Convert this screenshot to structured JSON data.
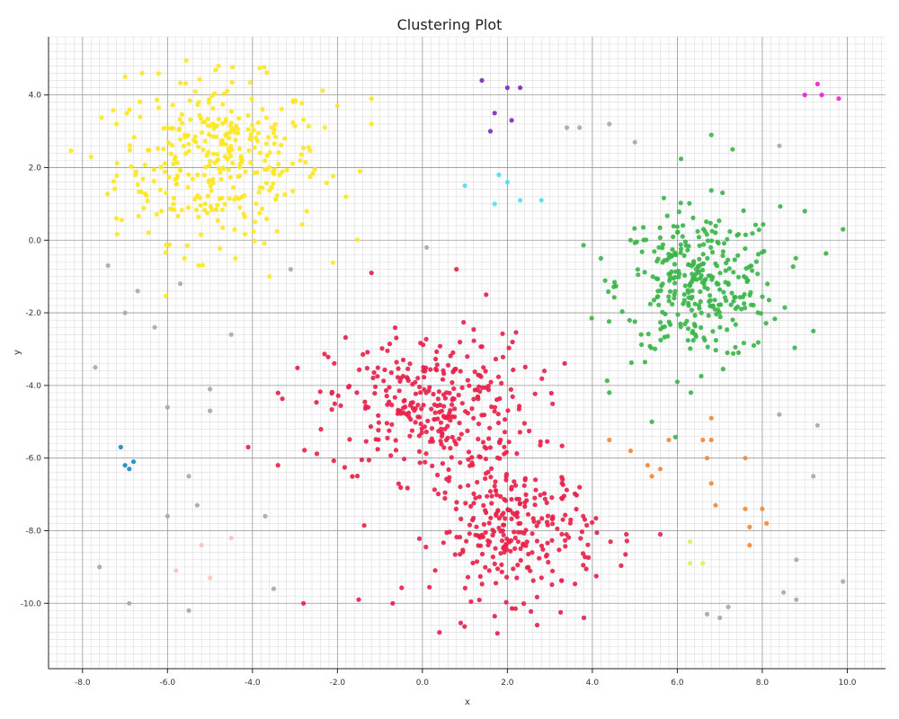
{
  "chart_data": {
    "type": "scatter",
    "title": "Clustering Plot",
    "xlabel": "x",
    "ylabel": "y",
    "xlim": [
      -8.8,
      10.9
    ],
    "ylim": [
      -11.8,
      5.6
    ],
    "x_ticks": [
      -8,
      -6,
      -4,
      -2,
      0,
      2,
      4,
      6,
      8,
      10
    ],
    "y_ticks": [
      -10,
      -8,
      -6,
      -4,
      -2,
      0,
      2,
      4
    ],
    "x_tick_labels": [
      "-8.0",
      "-6.0",
      "-4.0",
      "-2.0",
      "0.0",
      "2.0",
      "4.0",
      "6.0",
      "8.0",
      "10.0"
    ],
    "y_tick_labels": [
      "-10.0",
      "-8.0",
      "-6.0",
      "-4.0",
      "-2.0",
      "0.0",
      "2.0",
      "4.0"
    ],
    "grid": true,
    "minor_grid_step": 0.2,
    "legend": "none",
    "clusters": [
      {
        "color": "#fde725",
        "center": [
          -4.8,
          2.2
        ],
        "spread": [
          1.2,
          1.1
        ],
        "count": 340,
        "points": [
          [
            -7.8,
            2.3
          ],
          [
            -7.2,
            3.2
          ],
          [
            -7.0,
            4.5
          ],
          [
            -6.6,
            4.6
          ],
          [
            -7.2,
            0.6
          ],
          [
            -2.0,
            3.7
          ],
          [
            -1.2,
            3.9
          ],
          [
            -1.2,
            3.2
          ],
          [
            -1.8,
            1.2
          ],
          [
            -4.8,
            4.8
          ],
          [
            -5.6,
            -0.5
          ],
          [
            -3.6,
            -1.0
          ],
          [
            -4.4,
            -0.5
          ]
        ]
      },
      {
        "color": "#3db54b",
        "center": [
          6.5,
          -1.2
        ],
        "spread": [
          0.95,
          1.05
        ],
        "count": 330,
        "points": [
          [
            6.8,
            2.9
          ],
          [
            7.3,
            2.5
          ],
          [
            9.0,
            0.8
          ],
          [
            9.9,
            0.3
          ],
          [
            4.4,
            -4.2
          ],
          [
            5.4,
            -5.0
          ],
          [
            6.0,
            -3.9
          ],
          [
            9.2,
            -2.5
          ],
          [
            4.2,
            -0.5
          ],
          [
            7.8,
            -2.9
          ]
        ]
      },
      {
        "color": "#e8224a",
        "center": [
          0.2,
          -4.6
        ],
        "spread": [
          1.2,
          1.0
        ],
        "count": 330,
        "points": [
          [
            -1.2,
            -0.9
          ],
          [
            0.8,
            -0.8
          ],
          [
            1.5,
            -1.5
          ],
          [
            -4.1,
            -5.7
          ],
          [
            -3.4,
            -6.2
          ],
          [
            -2.8,
            -10.0
          ],
          [
            -1.5,
            -9.9
          ],
          [
            -0.7,
            -10.0
          ]
        ]
      },
      {
        "color": "#e8224a",
        "center": [
          2.2,
          -8.0
        ],
        "spread": [
          0.95,
          0.9
        ],
        "count": 270,
        "points": [
          [
            0.4,
            -10.8
          ],
          [
            2.7,
            -10.6
          ],
          [
            3.8,
            -10.4
          ],
          [
            4.8,
            -8.1
          ],
          [
            5.6,
            -8.1
          ]
        ]
      },
      {
        "color": "#7b2fbf",
        "points": [
          [
            1.4,
            4.4
          ],
          [
            2.0,
            4.2
          ],
          [
            2.3,
            4.2
          ],
          [
            1.7,
            3.5
          ],
          [
            2.1,
            3.3
          ],
          [
            1.6,
            3.0
          ]
        ]
      },
      {
        "color": "#f021d8",
        "points": [
          [
            9.3,
            4.3
          ],
          [
            9.0,
            4.0
          ],
          [
            9.4,
            4.0
          ],
          [
            9.8,
            3.9
          ]
        ]
      },
      {
        "color": "#52e0ee",
        "points": [
          [
            1.0,
            1.5
          ],
          [
            1.8,
            1.8
          ],
          [
            2.0,
            1.6
          ],
          [
            1.7,
            1.0
          ],
          [
            2.3,
            1.1
          ],
          [
            2.8,
            1.1
          ]
        ]
      },
      {
        "color": "#1d8bc3",
        "points": [
          [
            -7.1,
            -5.7
          ],
          [
            -7.0,
            -6.2
          ],
          [
            -6.8,
            -6.1
          ],
          [
            -6.9,
            -6.3
          ]
        ]
      },
      {
        "color": "#f4893a",
        "points": [
          [
            4.4,
            -5.5
          ],
          [
            5.8,
            -5.5
          ],
          [
            6.6,
            -5.5
          ],
          [
            6.8,
            -5.5
          ],
          [
            6.8,
            -4.9
          ],
          [
            4.9,
            -5.8
          ],
          [
            6.7,
            -6.0
          ],
          [
            7.6,
            -6.0
          ],
          [
            5.3,
            -6.2
          ],
          [
            5.6,
            -6.3
          ],
          [
            5.4,
            -6.5
          ],
          [
            6.8,
            -6.7
          ],
          [
            6.9,
            -7.3
          ],
          [
            7.6,
            -7.4
          ],
          [
            8.0,
            -7.4
          ],
          [
            8.1,
            -7.8
          ],
          [
            7.7,
            -7.9
          ],
          [
            7.7,
            -8.4
          ]
        ]
      },
      {
        "color": "#dcf05a",
        "points": [
          [
            6.3,
            -8.3
          ],
          [
            6.3,
            -8.9
          ],
          [
            6.6,
            -8.9
          ]
        ]
      },
      {
        "color": "#fcc3c0",
        "points": [
          [
            -5.2,
            -8.4
          ],
          [
            -4.5,
            -8.2
          ],
          [
            -5.8,
            -9.1
          ],
          [
            -5.0,
            -9.3
          ]
        ]
      },
      {
        "color": "#a9a9a9",
        "points": [
          [
            -7.4,
            -0.7
          ],
          [
            -6.7,
            -1.4
          ],
          [
            -5.7,
            -1.2
          ],
          [
            -7.0,
            -2.0
          ],
          [
            -6.3,
            -2.4
          ],
          [
            -4.5,
            -2.6
          ],
          [
            -7.7,
            -3.5
          ],
          [
            -5.0,
            -4.1
          ],
          [
            -5.0,
            -4.7
          ],
          [
            -6.0,
            -4.6
          ],
          [
            -5.5,
            -6.5
          ],
          [
            -5.3,
            -7.3
          ],
          [
            -6.0,
            -7.6
          ],
          [
            -3.7,
            -7.6
          ],
          [
            -7.6,
            -9.0
          ],
          [
            -6.9,
            -10.0
          ],
          [
            -5.5,
            -10.2
          ],
          [
            -3.5,
            -9.6
          ],
          [
            -3.1,
            -0.8
          ],
          [
            0.1,
            -0.2
          ],
          [
            3.4,
            3.1
          ],
          [
            3.7,
            3.1
          ],
          [
            4.4,
            3.2
          ],
          [
            5.0,
            2.7
          ],
          [
            8.4,
            2.6
          ],
          [
            8.4,
            -4.8
          ],
          [
            9.3,
            -5.1
          ],
          [
            9.2,
            -6.5
          ],
          [
            8.8,
            -8.8
          ],
          [
            8.5,
            -9.7
          ],
          [
            8.8,
            -9.9
          ],
          [
            9.9,
            -9.4
          ],
          [
            7.2,
            -10.1
          ],
          [
            6.7,
            -10.3
          ],
          [
            7.0,
            -10.4
          ]
        ]
      }
    ]
  }
}
